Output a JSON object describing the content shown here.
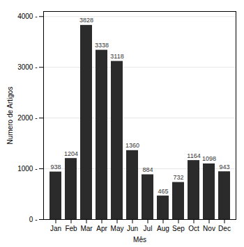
{
  "chart_data": {
    "type": "bar",
    "categories": [
      "Jan",
      "Feb",
      "Mar",
      "Apr",
      "May",
      "Jun",
      "Jul",
      "Aug",
      "Sep",
      "Oct",
      "Nov",
      "Dec"
    ],
    "values": [
      938,
      1204,
      3828,
      3338,
      3118,
      1360,
      884,
      465,
      732,
      1164,
      1098,
      943
    ],
    "color": "#2b2b2b",
    "xlabel": "Mês",
    "ylabel": "Numero de Artigos",
    "ylim": [
      0,
      4100
    ],
    "yticks": [
      {
        "value": 0,
        "label": "0 -"
      },
      {
        "value": 1000,
        "label": "1000 -"
      },
      {
        "value": 2000,
        "label": "2000 -"
      },
      {
        "value": 3000,
        "label": "3000 -"
      },
      {
        "value": 4000,
        "label": "4000 -"
      }
    ],
    "grid": true,
    "data_labels": true
  }
}
